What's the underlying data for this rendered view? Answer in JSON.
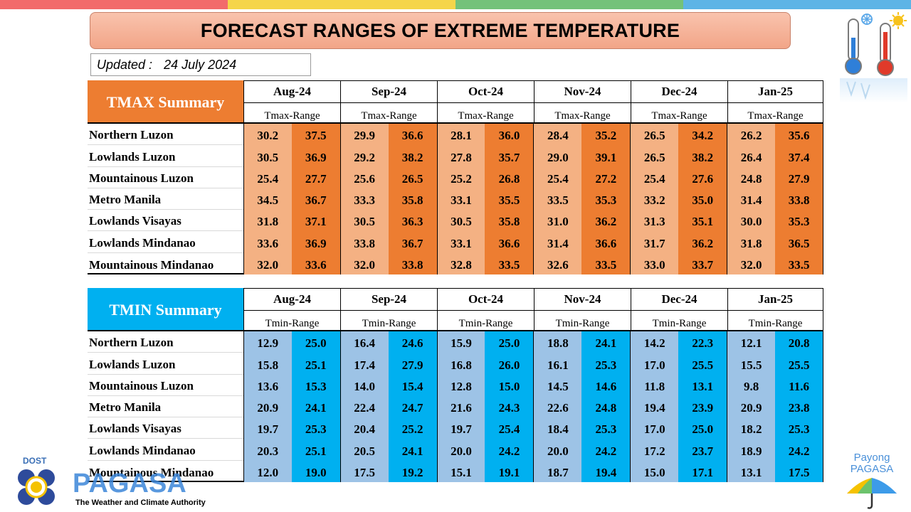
{
  "title": "FORECAST RANGES OF EXTREME TEMPERATURE",
  "updated": {
    "label": "Updated :",
    "date": "24 July 2024"
  },
  "top_bar_colors": [
    "#f26b6b",
    "#f5d54a",
    "#74c27a",
    "#5db4e6"
  ],
  "tmax": {
    "summary_label": "TMAX Summary",
    "range_label": "Tmax-Range",
    "months": [
      "Aug-24",
      "Sep-24",
      "Oct-24",
      "Nov-24",
      "Dec-24",
      "Jan-25"
    ],
    "rows": [
      {
        "region": "Northern Luzon",
        "values": [
          [
            "30.2",
            "37.5"
          ],
          [
            "29.9",
            "36.6"
          ],
          [
            "28.1",
            "36.0"
          ],
          [
            "28.4",
            "35.2"
          ],
          [
            "26.5",
            "34.2"
          ],
          [
            "26.2",
            "35.6"
          ]
        ]
      },
      {
        "region": "Lowlands Luzon",
        "values": [
          [
            "30.5",
            "36.9"
          ],
          [
            "29.2",
            "38.2"
          ],
          [
            "27.8",
            "35.7"
          ],
          [
            "29.0",
            "39.1"
          ],
          [
            "26.5",
            "38.2"
          ],
          [
            "26.4",
            "37.4"
          ]
        ]
      },
      {
        "region": "Mountainous Luzon",
        "values": [
          [
            "25.4",
            "27.7"
          ],
          [
            "25.6",
            "26.5"
          ],
          [
            "25.2",
            "26.8"
          ],
          [
            "25.4",
            "27.2"
          ],
          [
            "25.4",
            "27.6"
          ],
          [
            "24.8",
            "27.9"
          ]
        ]
      },
      {
        "region": "Metro Manila",
        "values": [
          [
            "34.5",
            "36.7"
          ],
          [
            "33.3",
            "35.8"
          ],
          [
            "33.1",
            "35.5"
          ],
          [
            "33.5",
            "35.3"
          ],
          [
            "33.2",
            "35.0"
          ],
          [
            "31.4",
            "33.8"
          ]
        ]
      },
      {
        "region": "Lowlands Visayas",
        "values": [
          [
            "31.8",
            "37.1"
          ],
          [
            "30.5",
            "36.3"
          ],
          [
            "30.5",
            "35.8"
          ],
          [
            "31.0",
            "36.2"
          ],
          [
            "31.3",
            "35.1"
          ],
          [
            "30.0",
            "35.3"
          ]
        ]
      },
      {
        "region": "Lowlands Mindanao",
        "values": [
          [
            "33.6",
            "36.9"
          ],
          [
            "33.8",
            "36.7"
          ],
          [
            "33.1",
            "36.6"
          ],
          [
            "31.4",
            "36.6"
          ],
          [
            "31.7",
            "36.2"
          ],
          [
            "31.8",
            "36.5"
          ]
        ]
      },
      {
        "region": "Mountainous Mindanao",
        "values": [
          [
            "32.0",
            "33.6"
          ],
          [
            "32.0",
            "33.8"
          ],
          [
            "32.8",
            "33.5"
          ],
          [
            "32.6",
            "33.5"
          ],
          [
            "33.0",
            "33.7"
          ],
          [
            "32.0",
            "33.5"
          ]
        ]
      }
    ]
  },
  "tmin": {
    "summary_label": "TMIN Summary",
    "range_label": "Tmin-Range",
    "months": [
      "Aug-24",
      "Sep-24",
      "Oct-24",
      "Nov-24",
      "Dec-24",
      "Jan-25"
    ],
    "rows": [
      {
        "region": "Northern Luzon",
        "values": [
          [
            "12.9",
            "25.0"
          ],
          [
            "16.4",
            "24.6"
          ],
          [
            "15.9",
            "25.0"
          ],
          [
            "18.8",
            "24.1"
          ],
          [
            "14.2",
            "22.3"
          ],
          [
            "12.1",
            "20.8"
          ]
        ]
      },
      {
        "region": "Lowlands Luzon",
        "values": [
          [
            "15.8",
            "25.1"
          ],
          [
            "17.4",
            "27.9"
          ],
          [
            "16.8",
            "26.0"
          ],
          [
            "16.1",
            "25.3"
          ],
          [
            "17.0",
            "25.5"
          ],
          [
            "15.5",
            "25.5"
          ]
        ]
      },
      {
        "region": "Mountainous Luzon",
        "values": [
          [
            "13.6",
            "15.3"
          ],
          [
            "14.0",
            "15.4"
          ],
          [
            "12.8",
            "15.0"
          ],
          [
            "14.5",
            "14.6"
          ],
          [
            "11.8",
            "13.1"
          ],
          [
            "9.8",
            "11.6"
          ]
        ]
      },
      {
        "region": "Metro Manila",
        "values": [
          [
            "20.9",
            "24.1"
          ],
          [
            "22.4",
            "24.7"
          ],
          [
            "21.6",
            "24.3"
          ],
          [
            "22.6",
            "24.8"
          ],
          [
            "19.4",
            "23.9"
          ],
          [
            "20.9",
            "23.8"
          ]
        ]
      },
      {
        "region": "Lowlands Visayas",
        "values": [
          [
            "19.7",
            "25.3"
          ],
          [
            "20.4",
            "25.2"
          ],
          [
            "19.7",
            "25.4"
          ],
          [
            "18.4",
            "25.3"
          ],
          [
            "17.0",
            "25.0"
          ],
          [
            "18.2",
            "25.3"
          ]
        ]
      },
      {
        "region": "Lowlands Mindanao",
        "values": [
          [
            "20.3",
            "25.1"
          ],
          [
            "20.5",
            "24.1"
          ],
          [
            "20.0",
            "24.2"
          ],
          [
            "20.0",
            "24.2"
          ],
          [
            "17.2",
            "23.7"
          ],
          [
            "18.9",
            "24.2"
          ]
        ]
      },
      {
        "region": "Mountainous Mindanao",
        "values": [
          [
            "12.0",
            "19.0"
          ],
          [
            "17.5",
            "19.2"
          ],
          [
            "15.1",
            "19.1"
          ],
          [
            "18.7",
            "19.4"
          ],
          [
            "15.0",
            "17.1"
          ],
          [
            "13.1",
            "17.5"
          ]
        ]
      }
    ]
  },
  "logos": {
    "dost": "DOST",
    "pagasa": "PAGASA",
    "tagline": "The Weather and Climate Authority",
    "payong_line1": "Payong",
    "payong_line2": "PAGASA",
    "thermometer_icon": "thermometer-hot-cold-icon"
  }
}
